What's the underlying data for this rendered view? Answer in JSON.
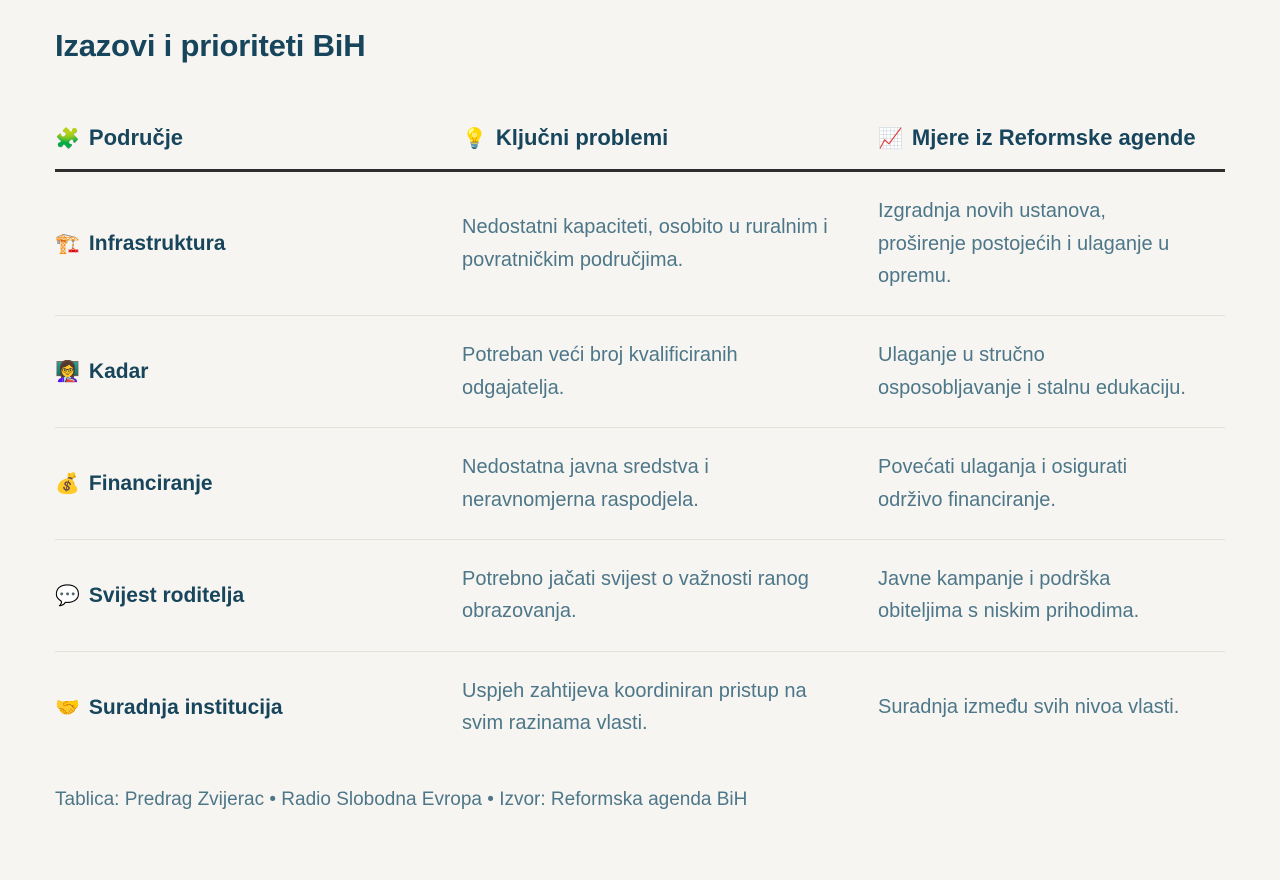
{
  "chart_data": {
    "type": "table",
    "title": "Izazovi i prioriteti BiH",
    "columns": [
      {
        "icon_name": "puzzle-piece",
        "icon": "🧩",
        "label": "Područje"
      },
      {
        "icon_name": "light-bulb",
        "icon": "💡",
        "label": "Ključni problemi"
      },
      {
        "icon_name": "chart-increasing",
        "icon": "📈",
        "label": "Mjere iz Reformske agende"
      }
    ],
    "rows": [
      {
        "icon_name": "building-construction",
        "icon": "🏗️",
        "area": "Infrastruktura",
        "problem": "Nedostatni kapaciteti, osobito u ruralnim i povratničkim područjima.",
        "measure": "Izgradnja novih ustanova, proširenje postojećih i ulaganje u opremu."
      },
      {
        "icon_name": "teacher",
        "icon": "👩‍🏫",
        "area": "Kadar",
        "problem": "Potreban veći broj kvalificiranih odgajatelja.",
        "measure": "Ulaganje u stručno osposobljavanje i stalnu edukaciju."
      },
      {
        "icon_name": "money-bag",
        "icon": "💰",
        "area": "Financiranje",
        "problem": "Nedostatna javna sredstva i neravnomjerna raspodjela.",
        "measure": "Povećati ulaganja i osigurati održivo financiranje."
      },
      {
        "icon_name": "speech-balloon",
        "icon": "💬",
        "area": "Svijest roditelja",
        "problem": "Potrebno jačati svijest o važnosti ranog obrazovanja.",
        "measure": "Javne kampanje i podrška obiteljima s niskim prihodima."
      },
      {
        "icon_name": "handshake",
        "icon": "🤝",
        "area": "Suradnja institucija",
        "problem": "Uspjeh zahtijeva koordiniran pristup na svim razinama vlasti.",
        "measure": "Suradnja između svih nivoa vlasti."
      }
    ],
    "footer": "Tablica: Predrag Zvijerac • Radio Slobodna Evropa • Izvor: Reformska agenda BiH"
  },
  "colors": {
    "background": "#f7f5f1",
    "heading_text": "#17455c",
    "body_text": "#4d7789",
    "header_rule": "#2e2e2e",
    "row_rule": "#e4e1db"
  }
}
